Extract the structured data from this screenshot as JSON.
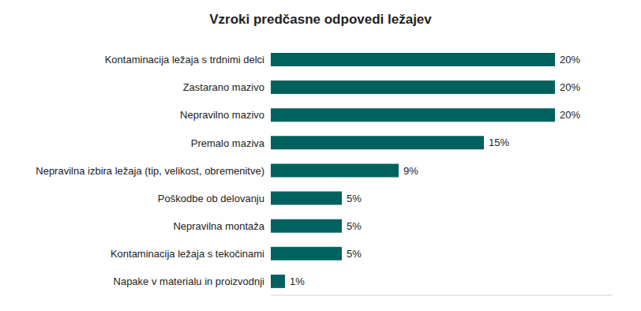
{
  "chart_data": {
    "type": "bar",
    "title": "Vzroki predčasne odpovedi ležajev",
    "orientation": "horizontal",
    "categories": [
      "Kontaminacija ležaja s trdnimi delci",
      "Zastarano mazivo",
      "Nepravilno mazivo",
      "Premalo maziva",
      "Nepravilna izbira ležaja (tip, velikost, obremenitve)",
      "Poškodbe ob delovanju",
      "Nepravilna montaža",
      "Kontaminacija ležaja s tekočinami",
      "Napake v materialu in proizvodnji"
    ],
    "values": [
      20,
      20,
      20,
      15,
      9,
      5,
      5,
      5,
      1
    ],
    "value_labels": [
      "20%",
      "20%",
      "20%",
      "15%",
      "9%",
      "5%",
      "5%",
      "5%",
      "1%"
    ],
    "data_labels": true,
    "color": "#00625f",
    "xlim": [
      0,
      24
    ],
    "tick_labels": false,
    "grid": false
  }
}
